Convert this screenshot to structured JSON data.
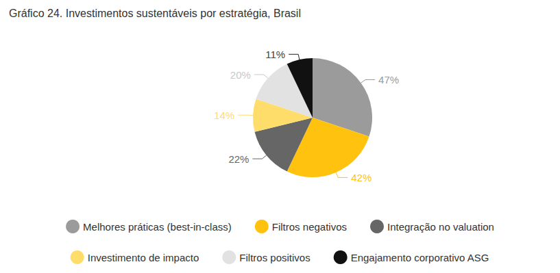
{
  "chart_data": {
    "type": "pie",
    "title": "Gráfico 24. Investimentos sustentáveis por estratégia, Brasil",
    "categories": [
      "Melhores práticas (best-in-class)",
      "Filtros negativos",
      "Integração no valuation",
      "Investimento de impacto",
      "Filtros positivos",
      "Engajamento corporativo ASG"
    ],
    "values": [
      47,
      42,
      22,
      14,
      20,
      11
    ],
    "value_labels": [
      "47%",
      "42%",
      "22%",
      "14%",
      "20%",
      "11%"
    ],
    "colors": [
      "#9b9b9b",
      "#ffc20e",
      "#666666",
      "#ffdd6b",
      "#e2e2e2",
      "#111111"
    ],
    "data_labels": true,
    "legend": "bottom"
  }
}
